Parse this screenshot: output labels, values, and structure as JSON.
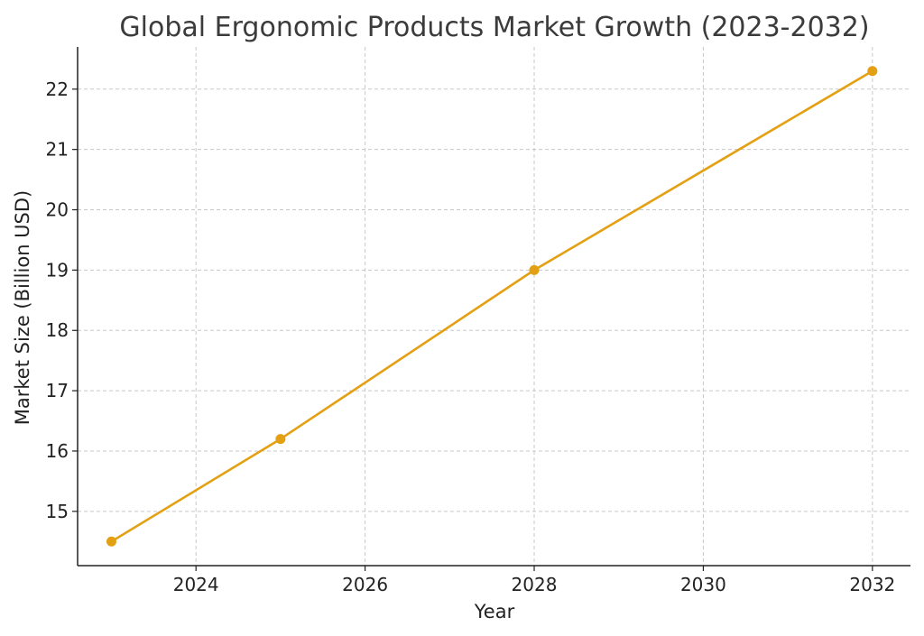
{
  "chart_data": {
    "type": "line",
    "title": "Global Ergonomic Products Market Growth (2023-2032)",
    "xlabel": "Year",
    "ylabel": "Market Size (Billion USD)",
    "x_ticks": [
      "2024",
      "2026",
      "2028",
      "2030",
      "2032"
    ],
    "y_ticks": [
      "15",
      "16",
      "17",
      "18",
      "19",
      "20",
      "21",
      "22"
    ],
    "xlim": [
      2022.6,
      2032.45
    ],
    "ylim": [
      14.1,
      22.7
    ],
    "grid": true,
    "series": [
      {
        "color": "#e3a012",
        "marker": "circle",
        "points": [
          {
            "x": 2023,
            "y": 14.5
          },
          {
            "x": 2025,
            "y": 16.2
          },
          {
            "x": 2028,
            "y": 19.0
          },
          {
            "x": 2032,
            "y": 22.3
          }
        ]
      }
    ]
  }
}
